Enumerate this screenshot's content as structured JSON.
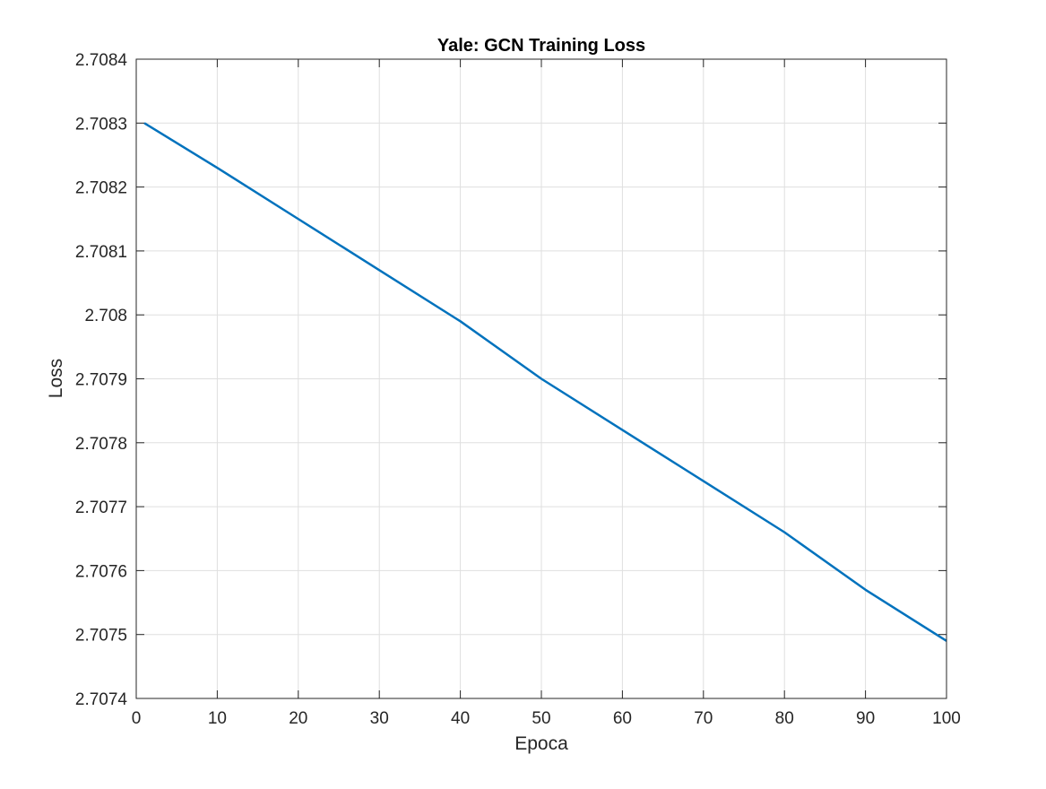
{
  "chart_data": {
    "type": "line",
    "title": "Yale: GCN Training Loss",
    "xlabel": "Epoca",
    "ylabel": "Loss",
    "xlim": [
      0,
      100
    ],
    "ylim": [
      2.7074,
      2.7084
    ],
    "x_ticks": [
      0,
      10,
      20,
      30,
      40,
      50,
      60,
      70,
      80,
      90,
      100
    ],
    "x_tick_labels": [
      "0",
      "10",
      "20",
      "30",
      "40",
      "50",
      "60",
      "70",
      "80",
      "90",
      "100"
    ],
    "y_ticks": [
      2.7074,
      2.7075,
      2.7076,
      2.7077,
      2.7078,
      2.7079,
      2.708,
      2.7081,
      2.7082,
      2.7083,
      2.7084
    ],
    "y_tick_labels": [
      "2.7074",
      "2.7075",
      "2.7076",
      "2.7077",
      "2.7078",
      "2.7079",
      "2.708",
      "2.7081",
      "2.7082",
      "2.7083",
      "2.7084"
    ],
    "grid": true,
    "series": [
      {
        "color": "#0072BD",
        "x": [
          1,
          10,
          20,
          30,
          40,
          50,
          60,
          70,
          80,
          90,
          100
        ],
        "y": [
          2.7083,
          2.70823,
          2.70815,
          2.70807,
          2.70799,
          2.7079,
          2.70782,
          2.70774,
          2.70766,
          2.70757,
          2.70749
        ]
      }
    ]
  }
}
